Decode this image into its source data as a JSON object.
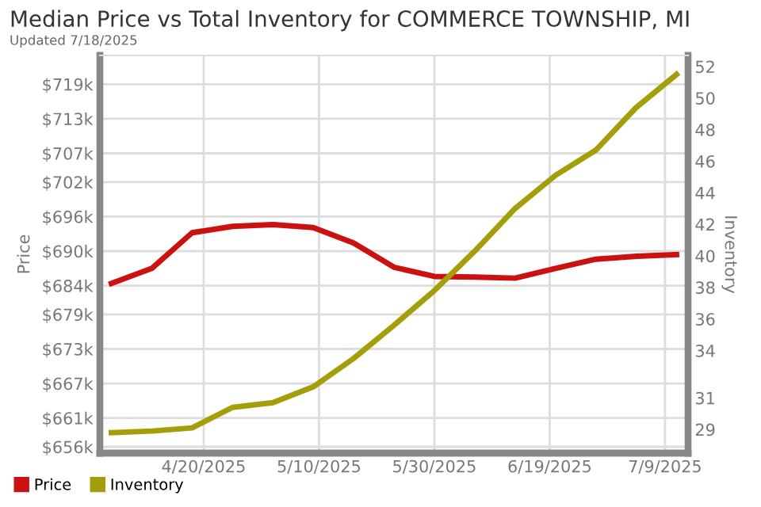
{
  "chart_data": {
    "type": "line",
    "title": "Median Price vs Total Inventory for COMMERCE TOWNSHIP, MI",
    "subtitle": "Updated 7/18/2025",
    "ylabel": "Price",
    "y2label": "Inventory",
    "x": [
      "2025-04-04",
      "2025-04-11",
      "2025-04-18",
      "2025-04-25",
      "2025-05-02",
      "2025-05-09",
      "2025-05-16",
      "2025-05-23",
      "2025-05-30",
      "2025-06-06",
      "2025-06-13",
      "2025-06-20",
      "2025-06-27",
      "2025-07-04",
      "2025-07-11"
    ],
    "series": [
      {
        "name": "Price",
        "color": "#cc1111",
        "values": [
          684.4,
          687.0,
          693.2,
          694.3,
          694.6,
          694.1,
          691.4,
          687.2,
          685.6,
          685.5,
          685.3,
          687.0,
          688.6,
          689.1,
          689.4
        ]
      },
      {
        "name": "Inventory",
        "color": "#a39e0a",
        "axis": "y2",
        "values": [
          28.8,
          28.9,
          29.1,
          30.4,
          30.7,
          31.7,
          33.5,
          35.6,
          37.8,
          40.3,
          43.0,
          45.1,
          46.7,
          49.4,
          51.5
        ]
      }
    ],
    "xlim": [
      "2025-04-02",
      "2025-07-13"
    ],
    "xticks": [
      {
        "value": "2025-04-20",
        "label": "4/20/2025"
      },
      {
        "value": "2025-05-10",
        "label": "5/10/2025"
      },
      {
        "value": "2025-05-30",
        "label": "5/30/2025"
      },
      {
        "value": "2025-06-19",
        "label": "6/19/2025"
      },
      {
        "value": "2025-07-09",
        "label": "7/9/2025"
      }
    ],
    "ylim": [
      654.9,
      724.0
    ],
    "yticks": [
      {
        "value": 656,
        "label": "$656k"
      },
      {
        "value": 661,
        "label": "$661k"
      },
      {
        "value": 667,
        "label": "$667k"
      },
      {
        "value": 673,
        "label": "$673k"
      },
      {
        "value": 679,
        "label": "$679k"
      },
      {
        "value": 684,
        "label": "$684k"
      },
      {
        "value": 690,
        "label": "$690k"
      },
      {
        "value": 696,
        "label": "$696k"
      },
      {
        "value": 702,
        "label": "$702k"
      },
      {
        "value": 707,
        "label": "$707k"
      },
      {
        "value": 713,
        "label": "$713k"
      },
      {
        "value": 719,
        "label": "$719k"
      }
    ],
    "y2lim": [
      27.5,
      52.7
    ],
    "y2ticks": [
      29,
      31,
      34,
      36,
      38,
      40,
      42,
      44,
      46,
      48,
      50,
      52
    ],
    "grid": true,
    "legend": "bottom left",
    "marker": "none",
    "line_style": "solid"
  }
}
